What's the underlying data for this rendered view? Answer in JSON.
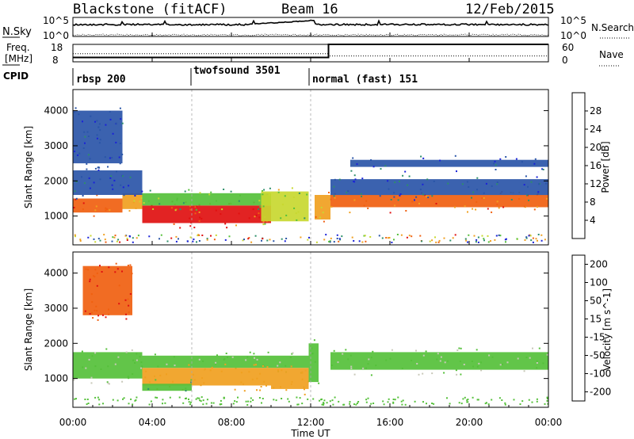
{
  "header": {
    "station": "Blackstone (fitACF)",
    "beam": "Beam 16",
    "date": "12/Feb/2015"
  },
  "chart_data": [
    {
      "type": "line",
      "panel": "nsky-nsearch",
      "left_label": "N.Sky",
      "right_label": "N.Search",
      "left_ticks": [
        "10^5",
        "10^0"
      ],
      "right_ticks": [
        "10^5",
        "10^0"
      ]
    },
    {
      "type": "line",
      "panel": "freq-nave",
      "left_label_line1": "Freq.",
      "left_label_line2": "[MHz]",
      "right_label": "Nave",
      "left_ticks": [
        18,
        8
      ],
      "right_ticks": [
        60,
        0
      ],
      "series": [
        {
          "name": "Freq.",
          "x": [
            0,
            12.9,
            12.9,
            24
          ],
          "values": [
            10.5,
            10.5,
            18,
            18
          ]
        },
        {
          "name": "Nave",
          "x": [
            0,
            12.9,
            12.9,
            24
          ],
          "values": [
            28,
            28,
            20,
            20
          ]
        }
      ]
    },
    {
      "type": "table",
      "panel": "cpid",
      "label": "CPID",
      "segments": [
        {
          "name": "rbsp 200",
          "start": 0,
          "end": 6
        },
        {
          "name": "twofsound 3501",
          "start": 6,
          "end": 12
        },
        {
          "name": "normal (fast) 151",
          "start": 12,
          "end": 24
        }
      ]
    },
    {
      "type": "heatmap",
      "panel": "power",
      "ylabel": "Slant Range [km]",
      "xlim": [
        0,
        24
      ],
      "ylim": [
        180,
        4600
      ],
      "y_ticks": [
        1000,
        2000,
        3000,
        4000
      ],
      "colorbar": {
        "label": "Power [dB]",
        "ticks": [
          4,
          8,
          12,
          16,
          20,
          24,
          28
        ],
        "colors": [
          "#1a22d8",
          "#2a55a8",
          "#2e8f6a",
          "#55c03a",
          "#c8d830",
          "#f0a020",
          "#f06010",
          "#e01010"
        ]
      },
      "bands": [
        {
          "t0": 0.0,
          "t1": 2.5,
          "r0": 1100,
          "r1": 1500,
          "level": 26
        },
        {
          "t0": 2.5,
          "t1": 3.5,
          "r0": 1200,
          "r1": 1650,
          "level": 22
        },
        {
          "t0": 3.5,
          "t1": 10.0,
          "r0": 800,
          "r1": 1300,
          "level": 28
        },
        {
          "t0": 3.5,
          "t1": 10.0,
          "r0": 1300,
          "r1": 1650,
          "level": 14
        },
        {
          "t0": 9.5,
          "t1": 11.9,
          "r0": 850,
          "r1": 1700,
          "level": 16
        },
        {
          "t0": 12.2,
          "t1": 13.0,
          "r0": 900,
          "r1": 1600,
          "level": 22
        },
        {
          "t0": 13.0,
          "t1": 24.0,
          "r0": 1250,
          "r1": 1600,
          "level": 25
        },
        {
          "t0": 13.0,
          "t1": 24.0,
          "r0": 1600,
          "r1": 2050,
          "level": 7
        },
        {
          "t0": 14.0,
          "t1": 24.0,
          "r0": 2400,
          "r1": 2600,
          "level": 5
        },
        {
          "t0": 0.0,
          "t1": 3.5,
          "r0": 1600,
          "r1": 2300,
          "level": 5
        },
        {
          "t0": 0.0,
          "t1": 2.5,
          "r0": 2500,
          "r1": 4000,
          "level": 4
        }
      ]
    },
    {
      "type": "heatmap",
      "panel": "velocity",
      "xlabel": "Time UT",
      "ylabel": "Slant Range [km]",
      "xlim": [
        0,
        24
      ],
      "ylim": [
        180,
        4600
      ],
      "y_ticks": [
        1000,
        2000,
        3000,
        4000
      ],
      "x_ticks": [
        "00:00",
        "04:00",
        "08:00",
        "12:00",
        "16:00",
        "20:00",
        "00:00"
      ],
      "colorbar": {
        "label": "Velocity [m s^-1]",
        "ticks": [
          200,
          100,
          50,
          15,
          -15,
          -50,
          -100,
          -200
        ],
        "colors": [
          "#1a22d8",
          "#2a55a8",
          "#2e8f6a",
          "#55c03a",
          "#c8c8b8",
          "#f0a020",
          "#f06010",
          "#e01010"
        ]
      },
      "bands": [
        {
          "t0": 0.0,
          "t1": 3.5,
          "r0": 1000,
          "r1": 1750,
          "level": 0
        },
        {
          "t0": 3.5,
          "t1": 11.9,
          "r0": 1300,
          "r1": 1650,
          "level": 0
        },
        {
          "t0": 3.5,
          "t1": 10.0,
          "r0": 800,
          "r1": 1300,
          "level": -60
        },
        {
          "t0": 3.5,
          "t1": 6.0,
          "r0": 650,
          "r1": 850,
          "level": 30
        },
        {
          "t0": 10.0,
          "t1": 11.9,
          "r0": 700,
          "r1": 1300,
          "level": -60
        },
        {
          "t0": 13.0,
          "t1": 24.0,
          "r0": 1250,
          "r1": 1750,
          "level": 0
        },
        {
          "t0": 11.9,
          "t1": 12.4,
          "r0": 900,
          "r1": 2000,
          "level": 30
        },
        {
          "t0": 0.5,
          "t1": 3.0,
          "r0": 2800,
          "r1": 4200,
          "level": -150
        }
      ]
    }
  ]
}
